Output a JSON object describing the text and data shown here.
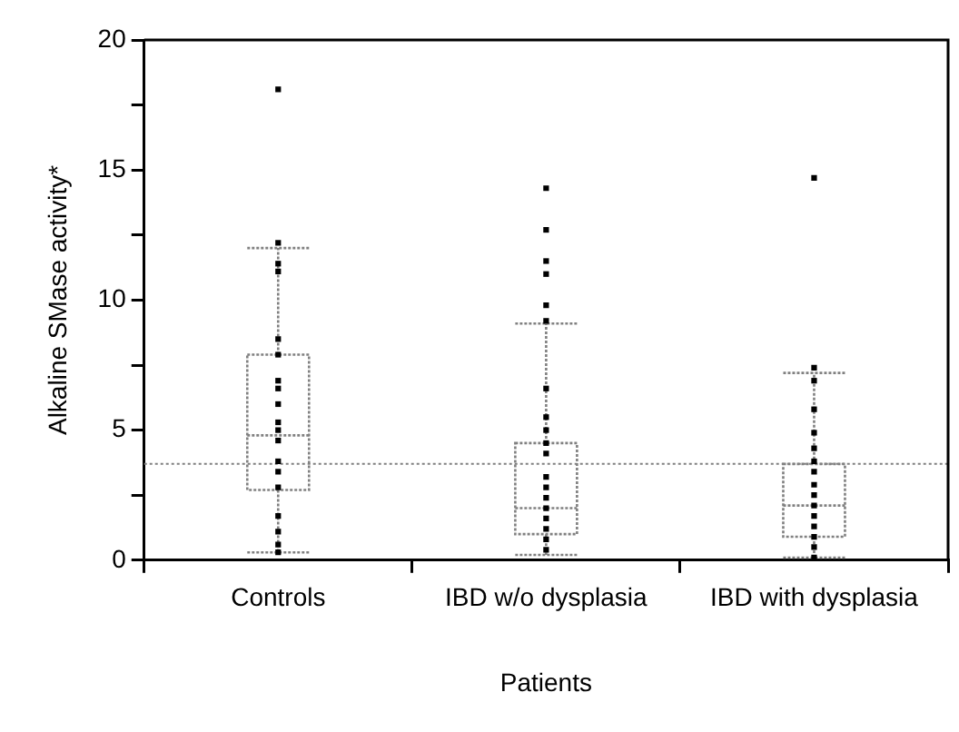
{
  "chart_data": {
    "type": "box",
    "xlabel": "Patients",
    "ylabel": "Alkaline SMase activity*",
    "categories": [
      "Controls",
      "IBD w/o dysplasia",
      "IBD with dysplasia"
    ],
    "ylim": [
      0,
      20
    ],
    "yticks": [
      0,
      {
        "value": 2.5,
        "label": null
      },
      5,
      {
        "value": 7.5,
        "label": null
      },
      10,
      {
        "value": 12.5,
        "label": null
      },
      15,
      {
        "value": 17.5,
        "label": null
      },
      20
    ],
    "grid": false,
    "legend": false,
    "marker": "square",
    "series": [
      {
        "color": "#808080",
        "boxes": [
          {
            "low": 0.3,
            "q1": 2.7,
            "median": 4.8,
            "q3": 7.9,
            "high": 12.0
          },
          {
            "low": 0.2,
            "q1": 1.0,
            "median": 2.0,
            "q3": 4.5,
            "high": 9.1
          },
          {
            "low": 0.1,
            "q1": 0.9,
            "median": 2.1,
            "q3": 3.7,
            "high": 7.2
          }
        ]
      },
      {
        "type": "scatter",
        "color": "#000000",
        "x": [
          "Controls",
          "Controls",
          "Controls",
          "Controls",
          "Controls",
          "Controls",
          "Controls",
          "Controls",
          "Controls",
          "Controls",
          "Controls",
          "Controls",
          "Controls",
          "Controls",
          "Controls",
          "Controls",
          "Controls",
          "Controls",
          "Controls",
          "IBD w/o dysplasia",
          "IBD w/o dysplasia",
          "IBD w/o dysplasia",
          "IBD w/o dysplasia",
          "IBD w/o dysplasia",
          "IBD w/o dysplasia",
          "IBD w/o dysplasia",
          "IBD w/o dysplasia",
          "IBD w/o dysplasia",
          "IBD w/o dysplasia",
          "IBD w/o dysplasia",
          "IBD w/o dysplasia",
          "IBD w/o dysplasia",
          "IBD w/o dysplasia",
          "IBD w/o dysplasia",
          "IBD w/o dysplasia",
          "IBD w/o dysplasia",
          "IBD w/o dysplasia",
          "IBD w/o dysplasia",
          "IBD with dysplasia",
          "IBD with dysplasia",
          "IBD with dysplasia",
          "IBD with dysplasia",
          "IBD with dysplasia",
          "IBD with dysplasia",
          "IBD with dysplasia",
          "IBD with dysplasia",
          "IBD with dysplasia",
          "IBD with dysplasia",
          "IBD with dysplasia",
          "IBD with dysplasia",
          "IBD with dysplasia",
          "IBD with dysplasia",
          "IBD with dysplasia",
          "IBD with dysplasia"
        ],
        "values": [
          18.1,
          12.2,
          11.4,
          11.1,
          8.5,
          7.9,
          6.9,
          6.6,
          6.0,
          5.3,
          5.0,
          4.6,
          3.8,
          3.4,
          2.8,
          1.7,
          1.1,
          0.6,
          0.3,
          14.3,
          12.7,
          11.5,
          11.0,
          9.8,
          9.2,
          6.6,
          5.5,
          5.0,
          4.5,
          4.1,
          3.2,
          2.8,
          2.4,
          2.0,
          1.6,
          1.2,
          0.8,
          0.4,
          14.7,
          7.4,
          6.9,
          5.8,
          4.9,
          4.3,
          3.8,
          3.4,
          2.9,
          2.5,
          2.1,
          1.7,
          1.3,
          0.9,
          0.5,
          0.1
        ]
      }
    ],
    "ref_lines": [
      {
        "axis": "y",
        "value": 3.7,
        "color": "#808080",
        "line_style": "dotted"
      }
    ]
  }
}
